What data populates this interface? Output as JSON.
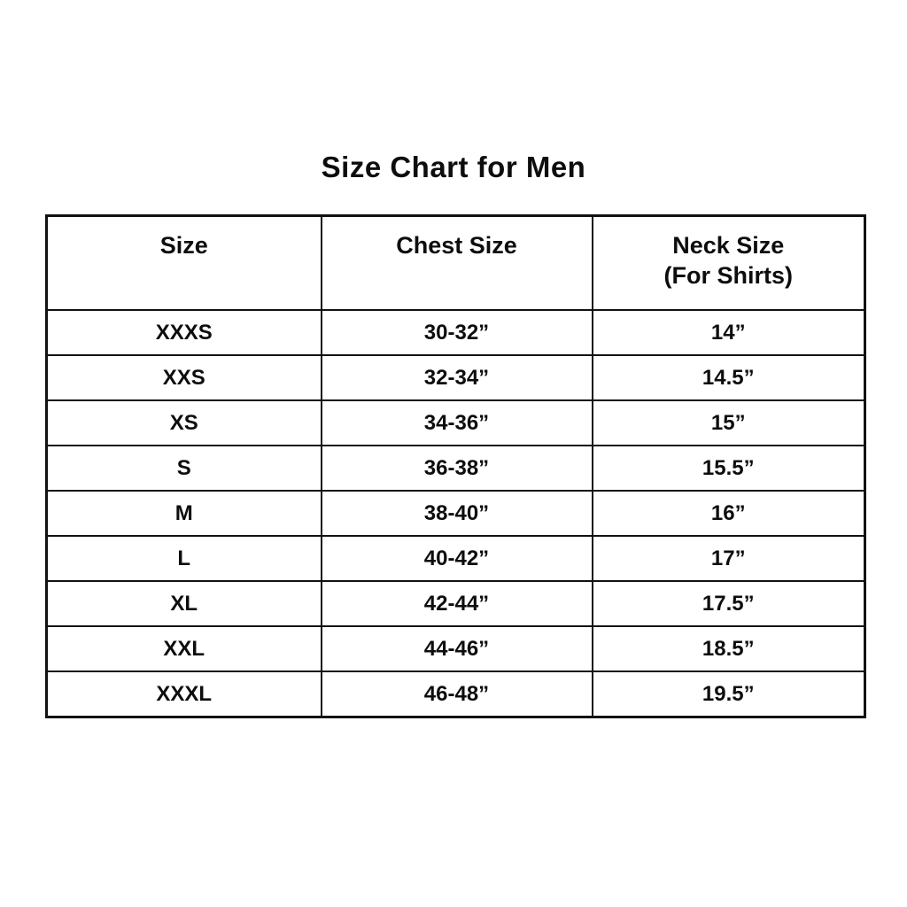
{
  "title": "Size Chart for Men",
  "header": {
    "col1": "Size",
    "col2": "Chest Size",
    "col3_line1": "Neck Size",
    "col3_line2": "(For Shirts)"
  },
  "chart_data": {
    "type": "table",
    "title": "Size Chart for Men",
    "columns": [
      "Size",
      "Chest Size",
      "Neck Size (For Shirts)"
    ],
    "rows": [
      [
        "XXXS",
        "30-32”",
        "14”"
      ],
      [
        "XXS",
        "32-34”",
        "14.5”"
      ],
      [
        "XS",
        "34-36”",
        "15”"
      ],
      [
        "S",
        "36-38”",
        "15.5”"
      ],
      [
        "M",
        "38-40”",
        "16”"
      ],
      [
        "L",
        "40-42”",
        "17”"
      ],
      [
        "XL",
        "42-44”",
        "17.5”"
      ],
      [
        "XXL",
        "44-46”",
        "18.5”"
      ],
      [
        "XXXL",
        "46-48”",
        "19.5”"
      ]
    ],
    "layout": {
      "grid": true,
      "text_color": "#0d0d0d",
      "border_color": "#121212",
      "background_color": "#ffffff"
    }
  }
}
